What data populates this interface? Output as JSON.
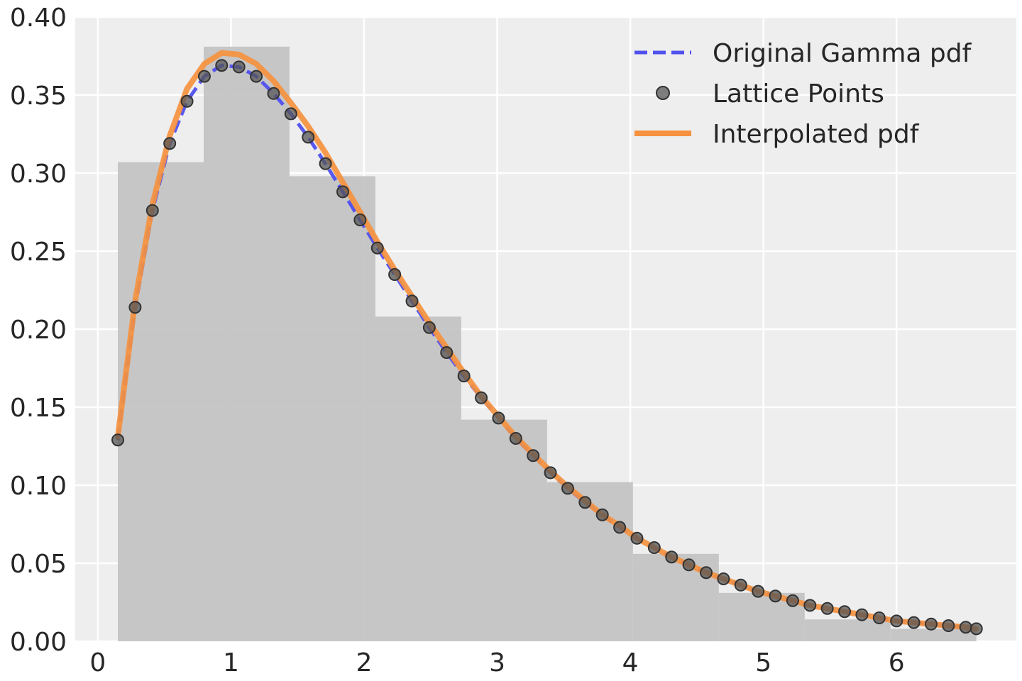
{
  "chart_data": {
    "type": "line",
    "title": "",
    "xlabel": "",
    "ylabel": "",
    "xlim": [
      -0.17,
      6.9
    ],
    "ylim": [
      0,
      0.4
    ],
    "grid": true,
    "legend_position": "top-right",
    "x_ticks": [
      "0",
      "1",
      "2",
      "3",
      "4",
      "5",
      "6"
    ],
    "y_ticks": [
      "0.00",
      "0.05",
      "0.10",
      "0.15",
      "0.20",
      "0.25",
      "0.30",
      "0.35",
      "0.40"
    ],
    "histogram": {
      "bin_edges": [
        0.15,
        0.795,
        1.44,
        2.085,
        2.73,
        3.375,
        4.02,
        4.665,
        5.31,
        5.955,
        6.6
      ],
      "densities": [
        0.307,
        0.381,
        0.298,
        0.208,
        0.142,
        0.102,
        0.056,
        0.031,
        0.014,
        0.008
      ],
      "color": "#c1c1c1"
    },
    "series": [
      {
        "name": "Original Gamma pdf",
        "style": "dashed",
        "color": "#5050ee",
        "x": [
          0.15,
          0.28,
          0.41,
          0.54,
          0.67,
          0.8,
          0.93,
          1.06,
          1.19,
          1.32,
          1.45,
          1.58,
          1.71,
          1.84,
          1.97,
          2.1,
          2.23,
          2.36,
          2.49,
          2.62,
          2.75,
          2.88,
          3.01,
          3.14,
          3.27,
          3.4,
          3.53,
          3.66,
          3.79,
          3.92,
          4.05,
          4.18,
          4.31,
          4.44,
          4.57,
          4.7,
          4.83,
          4.96,
          5.09,
          5.22,
          5.35,
          5.48,
          5.61,
          5.74,
          5.87,
          6.0,
          6.13,
          6.26,
          6.39,
          6.52,
          6.6
        ],
        "y": [
          0.129,
          0.214,
          0.276,
          0.319,
          0.346,
          0.362,
          0.369,
          0.368,
          0.362,
          0.351,
          0.338,
          0.323,
          0.306,
          0.288,
          0.27,
          0.252,
          0.235,
          0.218,
          0.201,
          0.185,
          0.17,
          0.156,
          0.143,
          0.13,
          0.119,
          0.108,
          0.098,
          0.089,
          0.081,
          0.073,
          0.066,
          0.06,
          0.054,
          0.049,
          0.044,
          0.04,
          0.036,
          0.032,
          0.029,
          0.026,
          0.023,
          0.021,
          0.019,
          0.017,
          0.015,
          0.013,
          0.012,
          0.011,
          0.01,
          0.009,
          0.008
        ]
      },
      {
        "name": "Lattice Points",
        "style": "markers",
        "color": "#555555",
        "x": [
          0.15,
          0.28,
          0.41,
          0.54,
          0.67,
          0.8,
          0.93,
          1.06,
          1.19,
          1.32,
          1.45,
          1.58,
          1.71,
          1.84,
          1.97,
          2.1,
          2.23,
          2.36,
          2.49,
          2.62,
          2.75,
          2.88,
          3.01,
          3.14,
          3.27,
          3.4,
          3.53,
          3.66,
          3.79,
          3.92,
          4.05,
          4.18,
          4.31,
          4.44,
          4.57,
          4.7,
          4.83,
          4.96,
          5.09,
          5.22,
          5.35,
          5.48,
          5.61,
          5.74,
          5.87,
          6.0,
          6.13,
          6.26,
          6.39,
          6.52,
          6.6
        ],
        "y": [
          0.129,
          0.214,
          0.276,
          0.319,
          0.346,
          0.362,
          0.369,
          0.368,
          0.362,
          0.351,
          0.338,
          0.323,
          0.306,
          0.288,
          0.27,
          0.252,
          0.235,
          0.218,
          0.201,
          0.185,
          0.17,
          0.156,
          0.143,
          0.13,
          0.119,
          0.108,
          0.098,
          0.089,
          0.081,
          0.073,
          0.066,
          0.06,
          0.054,
          0.049,
          0.044,
          0.04,
          0.036,
          0.032,
          0.029,
          0.026,
          0.023,
          0.021,
          0.019,
          0.017,
          0.015,
          0.013,
          0.012,
          0.011,
          0.01,
          0.009,
          0.008
        ]
      },
      {
        "name": "Interpolated pdf",
        "style": "solid",
        "color": "#f5913f",
        "x": [
          0.15,
          0.28,
          0.41,
          0.54,
          0.67,
          0.8,
          0.93,
          1.06,
          1.19,
          1.32,
          1.45,
          1.58,
          1.71,
          1.84,
          1.97,
          2.1,
          2.23,
          2.36,
          2.49,
          2.62,
          2.75,
          2.88,
          3.01,
          3.14,
          3.27,
          3.4,
          3.53,
          3.66,
          3.79,
          3.92,
          4.05,
          4.18,
          4.31,
          4.44,
          4.57,
          4.7,
          4.83,
          4.96,
          5.09,
          5.22,
          5.35,
          5.48,
          5.61,
          5.74,
          5.87,
          6.0,
          6.13,
          6.26,
          6.39,
          6.52,
          6.6
        ],
        "y": [
          0.131,
          0.218,
          0.28,
          0.324,
          0.354,
          0.37,
          0.377,
          0.376,
          0.37,
          0.359,
          0.345,
          0.33,
          0.313,
          0.294,
          0.275,
          0.256,
          0.238,
          0.221,
          0.204,
          0.188,
          0.172,
          0.157,
          0.144,
          0.131,
          0.12,
          0.109,
          0.099,
          0.09,
          0.081,
          0.074,
          0.066,
          0.06,
          0.054,
          0.049,
          0.044,
          0.04,
          0.036,
          0.032,
          0.029,
          0.026,
          0.023,
          0.021,
          0.019,
          0.017,
          0.015,
          0.013,
          0.012,
          0.011,
          0.01,
          0.009,
          0.008
        ]
      }
    ]
  }
}
